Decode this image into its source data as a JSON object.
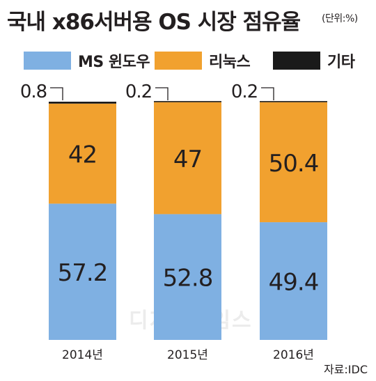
{
  "title": "국내 x86서버용 OS 시장 점유율",
  "unit": "(단위:%)",
  "source": "자료:IDC",
  "watermark": "디지털타임스",
  "colors": {
    "windows": "#7fb0e2",
    "linux": "#f1a12f",
    "other": "#1a1a1a"
  },
  "legend": [
    {
      "label": "MS 윈도우",
      "color": "#7fb0e2"
    },
    {
      "label": "리눅스",
      "color": "#f1a12f"
    },
    {
      "label": "기타",
      "color": "#1a1a1a"
    }
  ],
  "chart_data": {
    "type": "bar",
    "stacked": true,
    "categories": [
      "2014년",
      "2015년",
      "2016년"
    ],
    "series": [
      {
        "name": "MS 윈도우",
        "values": [
          57.2,
          52.8,
          49.4
        ],
        "labels": [
          "57.2",
          "52.8",
          "49.4"
        ]
      },
      {
        "name": "리눅스",
        "values": [
          42,
          47,
          50.4
        ],
        "labels": [
          "42",
          "47",
          "50.4"
        ]
      },
      {
        "name": "기타",
        "values": [
          0.8,
          0.2,
          0.2
        ],
        "labels": [
          "0.8",
          "0.2",
          "0.2"
        ]
      }
    ],
    "ylim": [
      0,
      100
    ],
    "grid": false,
    "legend_position": "top"
  }
}
